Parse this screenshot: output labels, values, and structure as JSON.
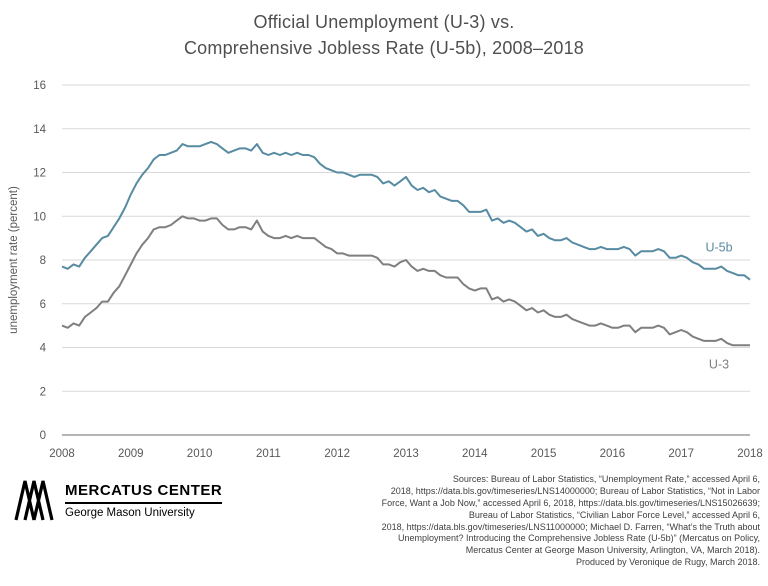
{
  "title": {
    "line1": "Official Unemployment (U-3) vs.",
    "line2": "Comprehensive Jobless Rate (U-5b), 2008–2018"
  },
  "logo": {
    "name": "MERCATUS CENTER",
    "subtitle": "George Mason University"
  },
  "sources_lines": [
    "Sources: Bureau of Labor Statistics, “Unemployment Rate,” accessed April 6,",
    "2018, https://data.bls.gov/timeseries/LNS14000000;  Bureau of Labor Statistics, “Not in Labor",
    "Force, Want a Job Now,” accessed  April 6, 2018, https://data.bls.gov/timeseries/LNS15026639;",
    "Bureau of Labor Statistics, “Civilian  Labor Force  Level,” accessed  April 6,",
    "2018, https://data.bls.gov/timeseries/LNS11000000;  Michael  D. Farren, “What’s  the Truth about",
    "Unemployment?  Introducing the Comprehensive  Jobless  Rate (U-5b)” (Mercatus on Policy,",
    "Mercatus Center at George Mason University, Arlington,  VA, March 2018).",
    "Produced by Veronique de Rugy, March 2018."
  ],
  "chart_data": {
    "type": "line",
    "title": "Official Unemployment (U-3) vs. Comprehensive Jobless Rate (U-5b), 2008–2018",
    "xlabel": "",
    "ylabel": "unemployment rate (percent)",
    "ylim": [
      0,
      16
    ],
    "ytick_step": 2,
    "x_ticks": [
      "2008",
      "2009",
      "2010",
      "2011",
      "2012",
      "2013",
      "2014",
      "2015",
      "2016",
      "2017",
      "2018"
    ],
    "x_unit": "monthly, Jan 2008 – Jan 2018",
    "grid": "horizontal",
    "legend": "inline-labels",
    "colors": {
      "grid": "#d9d9d9",
      "axis": "#9b9b9b",
      "tick_text": "#595959"
    },
    "series": [
      {
        "name": "U-5b",
        "color": "#578ba1",
        "label_dy": -28,
        "values": [
          7.7,
          7.6,
          7.8,
          7.7,
          8.1,
          8.4,
          8.7,
          9.0,
          9.1,
          9.5,
          9.9,
          10.4,
          11.0,
          11.5,
          11.9,
          12.2,
          12.6,
          12.8,
          12.8,
          12.9,
          13.0,
          13.3,
          13.2,
          13.2,
          13.2,
          13.3,
          13.4,
          13.3,
          13.1,
          12.9,
          13.0,
          13.1,
          13.1,
          13.0,
          13.3,
          12.9,
          12.8,
          12.9,
          12.8,
          12.9,
          12.8,
          12.9,
          12.8,
          12.8,
          12.7,
          12.4,
          12.2,
          12.1,
          12.0,
          12.0,
          11.9,
          11.8,
          11.9,
          11.9,
          11.9,
          11.8,
          11.5,
          11.6,
          11.4,
          11.6,
          11.8,
          11.4,
          11.2,
          11.3,
          11.1,
          11.2,
          10.9,
          10.8,
          10.7,
          10.7,
          10.5,
          10.2,
          10.2,
          10.2,
          10.3,
          9.8,
          9.9,
          9.7,
          9.8,
          9.7,
          9.5,
          9.3,
          9.4,
          9.1,
          9.2,
          9.0,
          8.9,
          8.9,
          9.0,
          8.8,
          8.7,
          8.6,
          8.5,
          8.5,
          8.6,
          8.5,
          8.5,
          8.5,
          8.6,
          8.5,
          8.2,
          8.4,
          8.4,
          8.4,
          8.5,
          8.4,
          8.1,
          8.1,
          8.2,
          8.1,
          7.9,
          7.8,
          7.6,
          7.6,
          7.6,
          7.7,
          7.5,
          7.4,
          7.3,
          7.3,
          7.1
        ]
      },
      {
        "name": "U-3",
        "color": "#7f7f7f",
        "label_dy": 23,
        "values": [
          5.0,
          4.9,
          5.1,
          5.0,
          5.4,
          5.6,
          5.8,
          6.1,
          6.1,
          6.5,
          6.8,
          7.3,
          7.8,
          8.3,
          8.7,
          9.0,
          9.4,
          9.5,
          9.5,
          9.6,
          9.8,
          10.0,
          9.9,
          9.9,
          9.8,
          9.8,
          9.9,
          9.9,
          9.6,
          9.4,
          9.4,
          9.5,
          9.5,
          9.4,
          9.8,
          9.3,
          9.1,
          9.0,
          9.0,
          9.1,
          9.0,
          9.1,
          9.0,
          9.0,
          9.0,
          8.8,
          8.6,
          8.5,
          8.3,
          8.3,
          8.2,
          8.2,
          8.2,
          8.2,
          8.2,
          8.1,
          7.8,
          7.8,
          7.7,
          7.9,
          8.0,
          7.7,
          7.5,
          7.6,
          7.5,
          7.5,
          7.3,
          7.2,
          7.2,
          7.2,
          6.9,
          6.7,
          6.6,
          6.7,
          6.7,
          6.2,
          6.3,
          6.1,
          6.2,
          6.1,
          5.9,
          5.7,
          5.8,
          5.6,
          5.7,
          5.5,
          5.4,
          5.4,
          5.5,
          5.3,
          5.2,
          5.1,
          5.0,
          5.0,
          5.1,
          5.0,
          4.9,
          4.9,
          5.0,
          5.0,
          4.7,
          4.9,
          4.9,
          4.9,
          5.0,
          4.9,
          4.6,
          4.7,
          4.8,
          4.7,
          4.5,
          4.4,
          4.3,
          4.3,
          4.3,
          4.4,
          4.2,
          4.1,
          4.1,
          4.1,
          4.1
        ]
      }
    ]
  }
}
